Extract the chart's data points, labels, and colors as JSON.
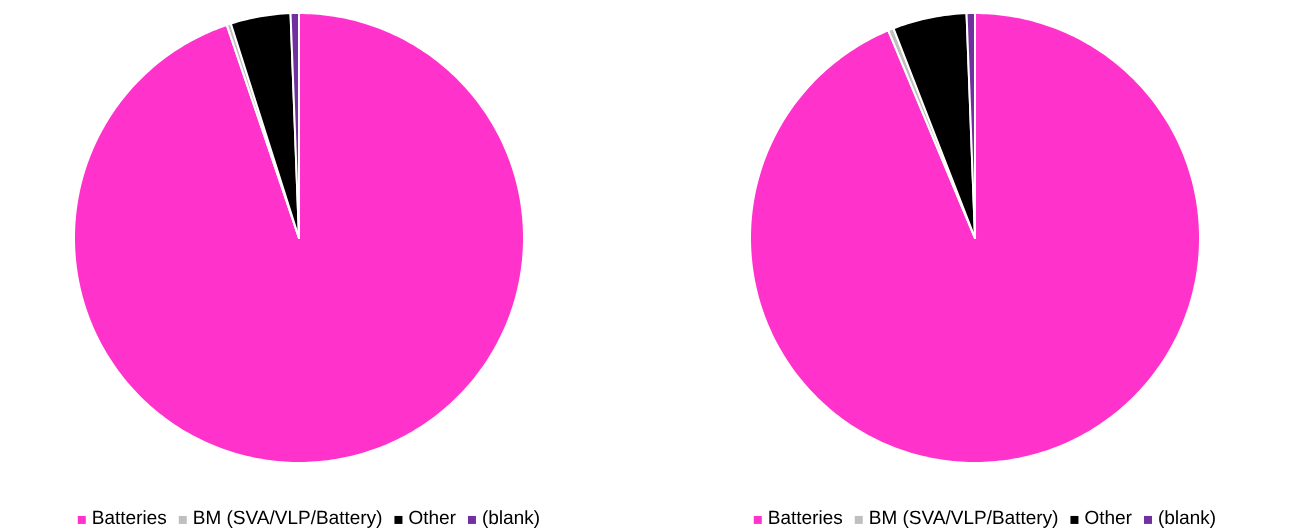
{
  "chart_data": [
    {
      "type": "pie",
      "categories": [
        "Batteries",
        "BM (SVA/VLP/Battery)",
        "Other",
        "(blank)"
      ],
      "values": [
        94.8,
        0.3,
        4.3,
        0.6
      ],
      "colors": [
        "#ff33cc",
        "#bfbfbf",
        "#000000",
        "#7030a0"
      ],
      "legend": "bottom"
    },
    {
      "type": "pie",
      "categories": [
        "Batteries",
        "BM (SVA/VLP/Battery)",
        "Other",
        "(blank)"
      ],
      "values": [
        93.7,
        0.4,
        5.3,
        0.6
      ],
      "colors": [
        "#ff33cc",
        "#bfbfbf",
        "#000000",
        "#7030a0"
      ],
      "legend": "bottom"
    }
  ]
}
